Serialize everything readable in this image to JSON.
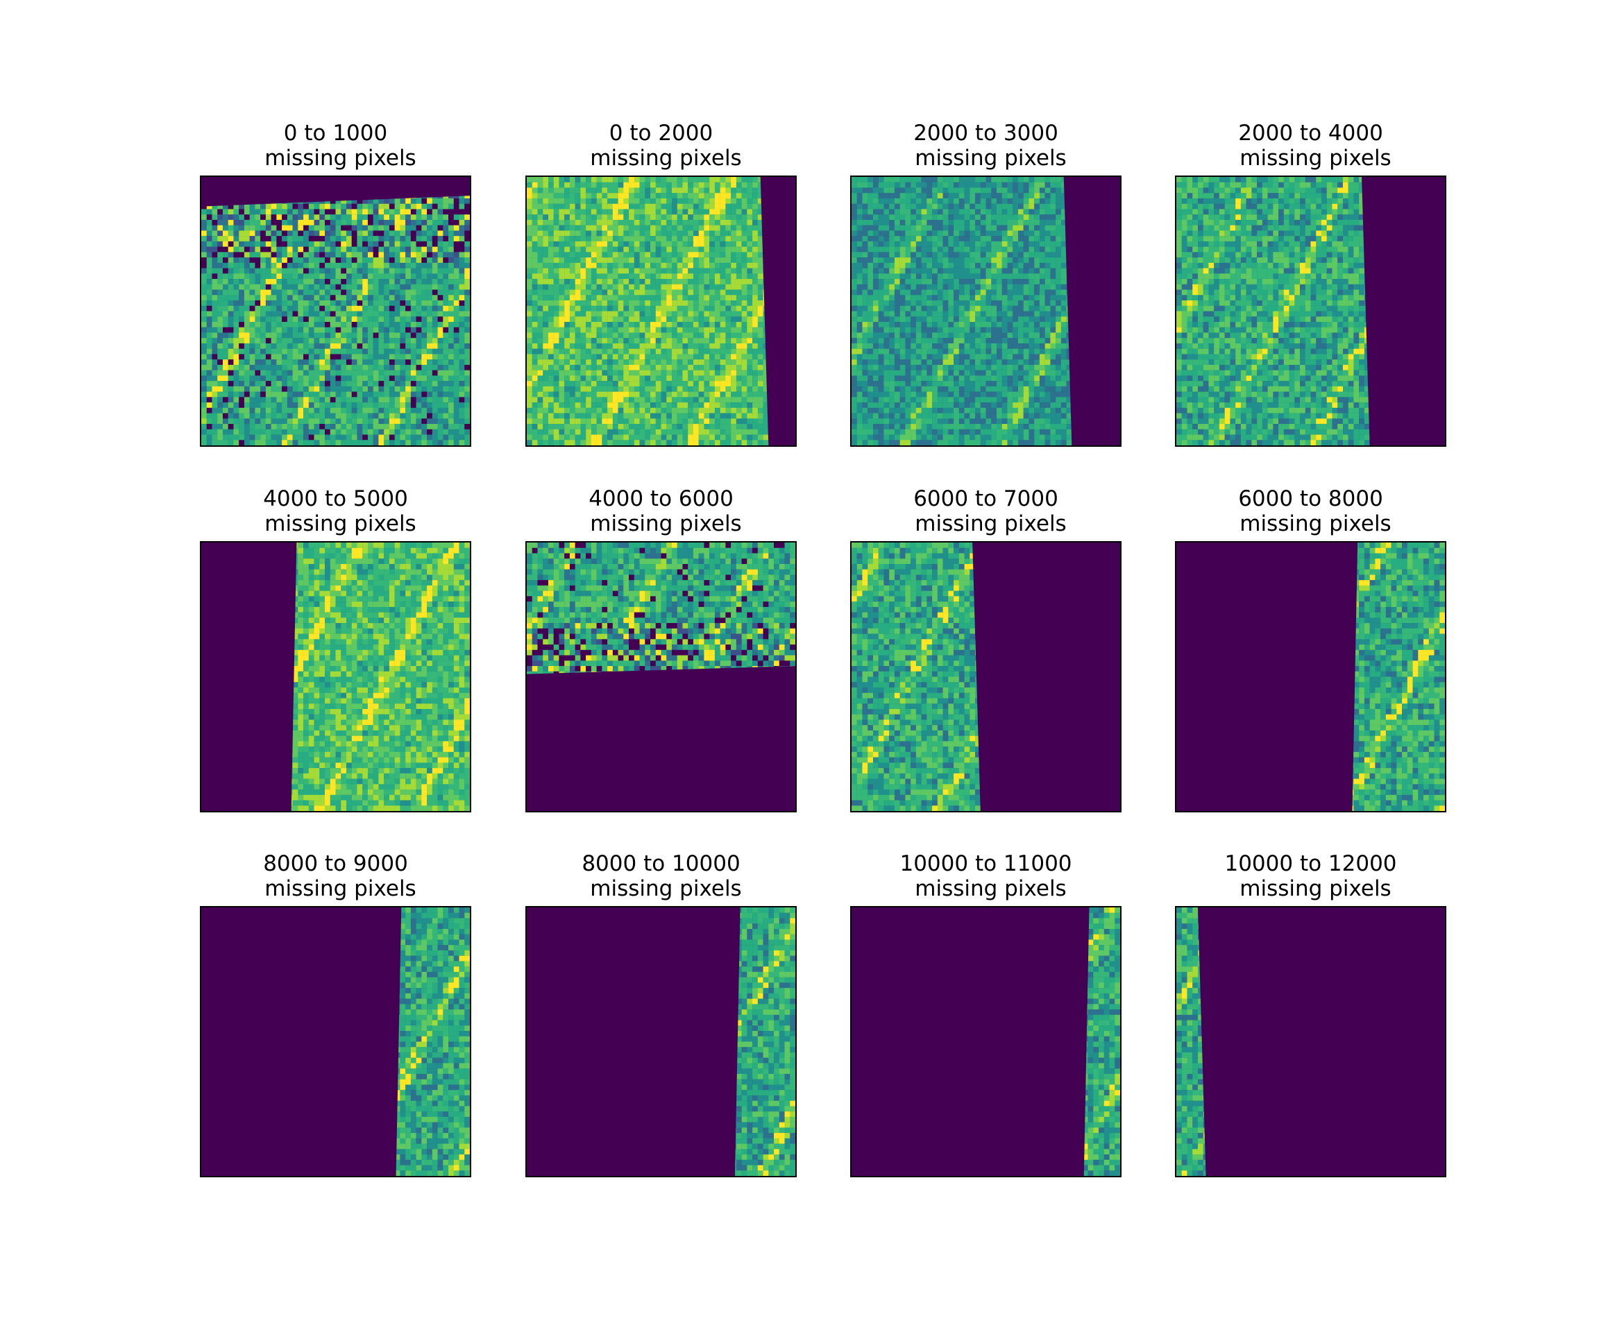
{
  "colors": {
    "masked": "#440154",
    "teal": "#21908d",
    "deep-teal": "#2c728e",
    "green": "#35b779",
    "lime": "#a5db36",
    "yellow": "#fde725",
    "navy": "#3b528b"
  },
  "panels": [
    {
      "title": "0 to 1000",
      "subtitle": "missing pixels",
      "mask": "top",
      "mask_fraction": 0.1,
      "texture": "noisy-top"
    },
    {
      "title": "0 to 2000",
      "subtitle": "missing pixels",
      "mask": "right",
      "mask_fraction": 0.12,
      "texture": "bright"
    },
    {
      "title": "2000 to 3000",
      "subtitle": "missing pixels",
      "mask": "right",
      "mask_fraction": 0.2,
      "texture": "dark"
    },
    {
      "title": "2000 to 4000",
      "subtitle": "missing pixels",
      "mask": "right",
      "mask_fraction": 0.3,
      "texture": "medium"
    },
    {
      "title": "4000 to 5000",
      "subtitle": "missing pixels",
      "mask": "left",
      "mask_fraction": 0.35,
      "texture": "bright"
    },
    {
      "title": "4000 to 6000",
      "subtitle": "missing pixels",
      "mask": "bottom",
      "mask_fraction": 0.52,
      "texture": "noisy-bottom"
    },
    {
      "title": "6000 to 7000",
      "subtitle": "missing pixels",
      "mask": "right",
      "mask_fraction": 0.54,
      "texture": "medium"
    },
    {
      "title": "6000 to 8000",
      "subtitle": "missing pixels",
      "mask": "left",
      "mask_fraction": 0.67,
      "texture": "medium"
    },
    {
      "title": "8000 to 9000",
      "subtitle": "missing pixels",
      "mask": "left",
      "mask_fraction": 0.74,
      "texture": "medium"
    },
    {
      "title": "8000 to 10000",
      "subtitle": "missing pixels",
      "mask": "left",
      "mask_fraction": 0.79,
      "texture": "medium"
    },
    {
      "title": "10000 to 11000",
      "subtitle": "missing pixels",
      "mask": "left",
      "mask_fraction": 0.88,
      "texture": "medium"
    },
    {
      "title": "10000 to 12000",
      "subtitle": "missing pixels",
      "mask": "right",
      "mask_fraction": 0.91,
      "texture": "medium"
    }
  ]
}
